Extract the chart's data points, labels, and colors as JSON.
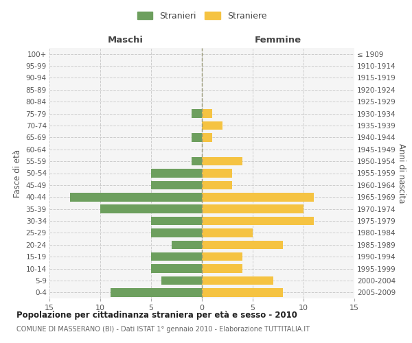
{
  "age_groups": [
    "100+",
    "95-99",
    "90-94",
    "85-89",
    "80-84",
    "75-79",
    "70-74",
    "65-69",
    "60-64",
    "55-59",
    "50-54",
    "45-49",
    "40-44",
    "35-39",
    "30-34",
    "25-29",
    "20-24",
    "15-19",
    "10-14",
    "5-9",
    "0-4"
  ],
  "birth_years": [
    "≤ 1909",
    "1910-1914",
    "1915-1919",
    "1920-1924",
    "1925-1929",
    "1930-1934",
    "1935-1939",
    "1940-1944",
    "1945-1949",
    "1950-1954",
    "1955-1959",
    "1960-1964",
    "1965-1969",
    "1970-1974",
    "1975-1979",
    "1980-1984",
    "1985-1989",
    "1990-1994",
    "1995-1999",
    "2000-2004",
    "2005-2009"
  ],
  "males": [
    0,
    0,
    0,
    0,
    0,
    1,
    0,
    1,
    0,
    1,
    5,
    5,
    13,
    10,
    5,
    5,
    3,
    5,
    5,
    4,
    9
  ],
  "females": [
    0,
    0,
    0,
    0,
    0,
    1,
    2,
    1,
    0,
    4,
    3,
    3,
    11,
    10,
    11,
    5,
    8,
    4,
    4,
    7,
    8
  ],
  "male_color": "#6d9f5e",
  "female_color": "#f5c342",
  "grid_color": "#cccccc",
  "bg_color": "#f5f5f5",
  "title": "Popolazione per cittadinanza straniera per età e sesso - 2010",
  "subtitle": "COMUNE DI MASSERANO (BI) - Dati ISTAT 1° gennaio 2010 - Elaborazione TUTTITALIA.IT",
  "xlabel_left": "Maschi",
  "xlabel_right": "Femmine",
  "ylabel_left": "Fasce di età",
  "ylabel_right": "Anni di nascita",
  "legend_male": "Stranieri",
  "legend_female": "Straniere",
  "xlim": 15
}
